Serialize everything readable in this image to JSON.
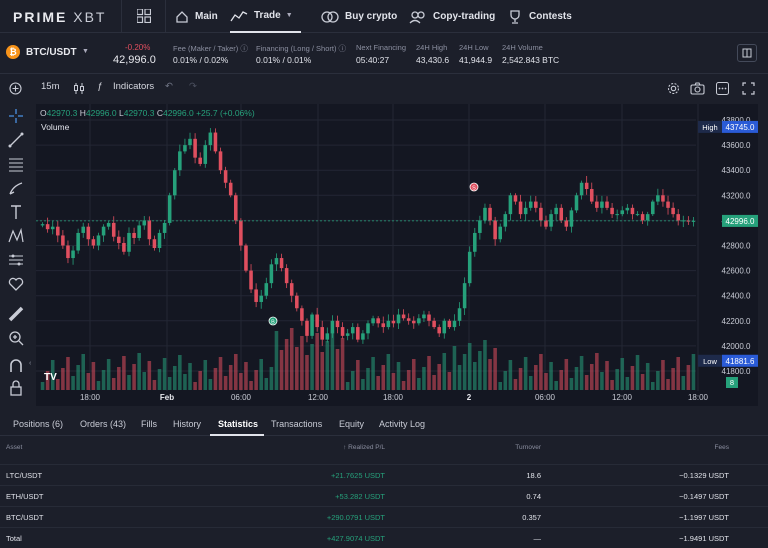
{
  "nav": {
    "logo_bold": "PRIME",
    "logo_thin": "XBT",
    "items": [
      {
        "label": "Main",
        "icon": "home-icon"
      },
      {
        "label": "Trade",
        "icon": "chart-icon"
      },
      {
        "label": "Buy crypto",
        "icon": "coins-icon"
      },
      {
        "label": "Copy-trading",
        "icon": "copy-icon"
      },
      {
        "label": "Contests",
        "icon": "trophy-icon"
      }
    ]
  },
  "ticker": {
    "pair": "BTC/USDT",
    "change": "-0.20%",
    "price": "42,996.0",
    "stats": [
      {
        "label": "Fee (Maker / Taker) ⓘ",
        "value": "0.01% / 0.02%"
      },
      {
        "label": "Financing (Long / Short) ⓘ",
        "value": "0.01% / 0.01%"
      },
      {
        "label": "Next Financing",
        "value": "05:40:27"
      },
      {
        "label": "24H High",
        "value": "43,430.6"
      },
      {
        "label": "24H Low",
        "value": "41,944.9"
      },
      {
        "label": "24H Volume",
        "value": "2,542.843 BTC"
      }
    ]
  },
  "toolbar": {
    "interval": "15m",
    "indicators": "Indicators"
  },
  "chart_legend": {
    "o_label": "O",
    "o": "42970.3",
    "h_label": "H",
    "h": "42996.0",
    "l_label": "L",
    "l": "42970.3",
    "c_label": "C",
    "c": "42996.0",
    "change": "+25.7 (+0.06%)",
    "volume_label": "Volume"
  },
  "chart_data": {
    "type": "candlestick",
    "ylim": [
      41800,
      43800
    ],
    "yticks": [
      "43800.0",
      "43600.0",
      "43400.0",
      "43200.0",
      "43000.0",
      "42800.0",
      "42600.0",
      "42400.0",
      "42200.0",
      "42000.0",
      "41800.0"
    ],
    "xticks": [
      "18:00",
      "Feb",
      "06:00",
      "12:00",
      "18:00",
      "2",
      "06:00",
      "12:00",
      "18:00"
    ],
    "high_label": "High",
    "high_value": "43745.0",
    "low_label": "Low",
    "low_value": "41881.6",
    "last_value": "42996.0",
    "marker_b": "B",
    "marker_s": "S",
    "volume_badge": "8",
    "up_color": "#26a17b",
    "down_color": "#e04f5f",
    "close_path": [
      42970,
      42930,
      42950,
      42880,
      42800,
      42700,
      42760,
      42900,
      42950,
      42850,
      42800,
      42880,
      42950,
      42980,
      42870,
      42820,
      42750,
      42900,
      42860,
      42960,
      43000,
      42850,
      42780,
      42900,
      42980,
      43200,
      43400,
      43550,
      43600,
      43650,
      43500,
      43450,
      43600,
      43700,
      43550,
      43400,
      43300,
      43200,
      43000,
      42800,
      42600,
      42450,
      42350,
      42400,
      42500,
      42650,
      42700,
      42620,
      42500,
      42400,
      42300,
      42200,
      42080,
      42250,
      42150,
      42050,
      42100,
      42200,
      42150,
      42080,
      42100,
      42150,
      42050,
      42100,
      42180,
      42220,
      42180,
      42150,
      42200,
      42180,
      42250,
      42220,
      42200,
      42180,
      42220,
      42250,
      42200,
      42150,
      42100,
      42200,
      42150,
      42200,
      42300,
      42500,
      42750,
      42900,
      43000,
      43100,
      43000,
      42850,
      42950,
      43050,
      43200,
      43150,
      43050,
      43100,
      43150,
      43100,
      43000,
      42950,
      43050,
      43100,
      43000,
      42950,
      43080,
      43200,
      43300,
      43250,
      43150,
      43100,
      43150,
      43100,
      43050,
      43050,
      43080,
      43100,
      43050,
      43050,
      43000,
      43050,
      43150,
      43200,
      43150,
      43100,
      43050,
      43000,
      43000,
      42990,
      42996
    ]
  },
  "tabs": [
    "Positions (6)",
    "Orders (43)",
    "Fills",
    "History",
    "Statistics",
    "Transactions",
    "Equity",
    "Activity Log"
  ],
  "table": {
    "headers": {
      "asset": "Asset",
      "pl": "Realized P/L",
      "turnover": "Turnover",
      "fees": "Fees"
    },
    "rows": [
      {
        "asset": "LTC/USDT",
        "pl": "+21.7625 USDT",
        "turnover": "18.6",
        "fees": "−0.1329 USDT"
      },
      {
        "asset": "ETH/USDT",
        "pl": "+53.282 USDT",
        "turnover": "0.74",
        "fees": "−0.1497 USDT"
      },
      {
        "asset": "BTC/USDT",
        "pl": "+290.0791 USDT",
        "turnover": "0.357",
        "fees": "−1.1997 USDT"
      },
      {
        "asset": "Total",
        "pl": "+427.9074 USDT",
        "turnover": "—",
        "fees": "−1.9491 USDT"
      }
    ]
  }
}
